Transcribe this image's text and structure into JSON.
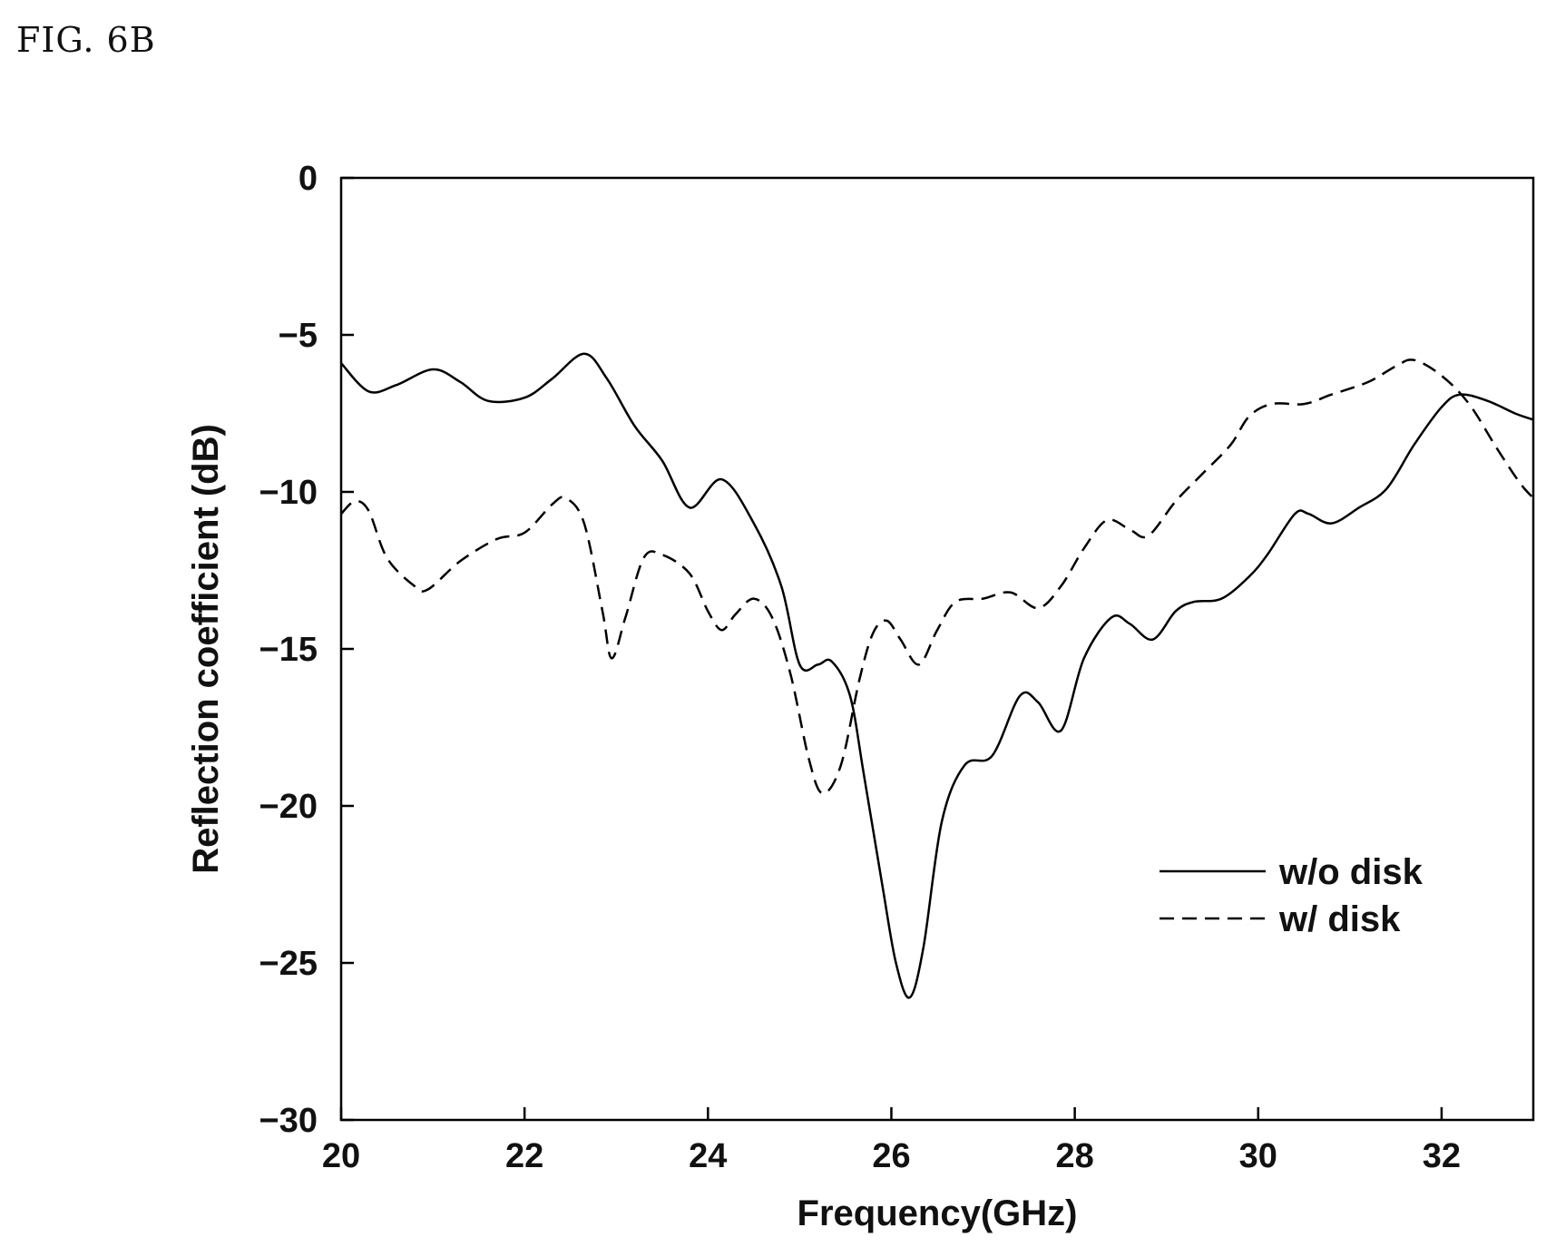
{
  "figure_label": "FIG. 6B",
  "chart_data": {
    "type": "line",
    "title": "",
    "xlabel": "Frequency(GHz)",
    "ylabel": "Reflection coefficient (dB)",
    "xlim": [
      20,
      33
    ],
    "ylim": [
      -30,
      0
    ],
    "xticks": [
      20,
      22,
      24,
      26,
      28,
      30,
      32
    ],
    "yticks": [
      0,
      -5,
      -10,
      -15,
      -20,
      -25,
      -30
    ],
    "grid": false,
    "legend_position": "bottom-right",
    "series": [
      {
        "name": "w/o disk",
        "style": "solid",
        "color": "#000000",
        "points": [
          [
            20.0,
            -5.9
          ],
          [
            20.3,
            -6.8
          ],
          [
            20.6,
            -6.6
          ],
          [
            21.0,
            -6.1
          ],
          [
            21.3,
            -6.5
          ],
          [
            21.6,
            -7.1
          ],
          [
            22.0,
            -7.0
          ],
          [
            22.3,
            -6.4
          ],
          [
            22.65,
            -5.6
          ],
          [
            22.9,
            -6.4
          ],
          [
            23.2,
            -7.9
          ],
          [
            23.5,
            -9.0
          ],
          [
            23.8,
            -10.5
          ],
          [
            24.15,
            -9.6
          ],
          [
            24.5,
            -11.0
          ],
          [
            24.8,
            -13.0
          ],
          [
            25.0,
            -15.5
          ],
          [
            25.2,
            -15.5
          ],
          [
            25.35,
            -15.4
          ],
          [
            25.55,
            -16.5
          ],
          [
            25.7,
            -19.0
          ],
          [
            25.9,
            -22.5
          ],
          [
            26.05,
            -25.0
          ],
          [
            26.2,
            -26.1
          ],
          [
            26.35,
            -24.5
          ],
          [
            26.55,
            -20.5
          ],
          [
            26.8,
            -18.7
          ],
          [
            27.1,
            -18.4
          ],
          [
            27.4,
            -16.5
          ],
          [
            27.6,
            -16.7
          ],
          [
            27.85,
            -17.6
          ],
          [
            28.1,
            -15.3
          ],
          [
            28.4,
            -14.0
          ],
          [
            28.6,
            -14.2
          ],
          [
            28.85,
            -14.7
          ],
          [
            29.1,
            -13.8
          ],
          [
            29.3,
            -13.5
          ],
          [
            29.6,
            -13.4
          ],
          [
            29.9,
            -12.7
          ],
          [
            30.1,
            -12.0
          ],
          [
            30.4,
            -10.7
          ],
          [
            30.55,
            -10.7
          ],
          [
            30.8,
            -11.0
          ],
          [
            31.1,
            -10.5
          ],
          [
            31.4,
            -9.9
          ],
          [
            31.7,
            -8.5
          ],
          [
            32.0,
            -7.3
          ],
          [
            32.2,
            -6.9
          ],
          [
            32.5,
            -7.1
          ],
          [
            32.8,
            -7.5
          ],
          [
            33.0,
            -7.7
          ]
        ]
      },
      {
        "name": "w/ disk",
        "style": "dashed",
        "color": "#000000",
        "points": [
          [
            20.0,
            -10.7
          ],
          [
            20.15,
            -10.3
          ],
          [
            20.3,
            -10.6
          ],
          [
            20.5,
            -12.1
          ],
          [
            20.8,
            -13.0
          ],
          [
            20.95,
            -13.1
          ],
          [
            21.3,
            -12.2
          ],
          [
            21.7,
            -11.5
          ],
          [
            22.0,
            -11.3
          ],
          [
            22.3,
            -10.4
          ],
          [
            22.45,
            -10.2
          ],
          [
            22.65,
            -11.0
          ],
          [
            22.85,
            -13.8
          ],
          [
            22.95,
            -15.3
          ],
          [
            23.1,
            -14.0
          ],
          [
            23.3,
            -12.1
          ],
          [
            23.5,
            -12.0
          ],
          [
            23.8,
            -12.6
          ],
          [
            24.0,
            -13.8
          ],
          [
            24.15,
            -14.4
          ],
          [
            24.3,
            -13.9
          ],
          [
            24.5,
            -13.4
          ],
          [
            24.7,
            -14.0
          ],
          [
            24.9,
            -15.8
          ],
          [
            25.1,
            -18.5
          ],
          [
            25.25,
            -19.6
          ],
          [
            25.45,
            -18.7
          ],
          [
            25.65,
            -16.0
          ],
          [
            25.8,
            -14.5
          ],
          [
            25.95,
            -14.1
          ],
          [
            26.1,
            -14.7
          ],
          [
            26.3,
            -15.5
          ],
          [
            26.5,
            -14.4
          ],
          [
            26.7,
            -13.5
          ],
          [
            27.0,
            -13.4
          ],
          [
            27.3,
            -13.2
          ],
          [
            27.6,
            -13.7
          ],
          [
            27.85,
            -13.0
          ],
          [
            28.1,
            -11.8
          ],
          [
            28.35,
            -10.9
          ],
          [
            28.6,
            -11.2
          ],
          [
            28.8,
            -11.4
          ],
          [
            29.1,
            -10.3
          ],
          [
            29.4,
            -9.4
          ],
          [
            29.7,
            -8.5
          ],
          [
            29.9,
            -7.6
          ],
          [
            30.15,
            -7.2
          ],
          [
            30.5,
            -7.2
          ],
          [
            30.8,
            -6.9
          ],
          [
            31.2,
            -6.5
          ],
          [
            31.5,
            -6.0
          ],
          [
            31.7,
            -5.8
          ],
          [
            32.0,
            -6.3
          ],
          [
            32.3,
            -7.2
          ],
          [
            32.6,
            -8.6
          ],
          [
            32.85,
            -9.7
          ],
          [
            33.0,
            -10.2
          ]
        ]
      }
    ]
  }
}
